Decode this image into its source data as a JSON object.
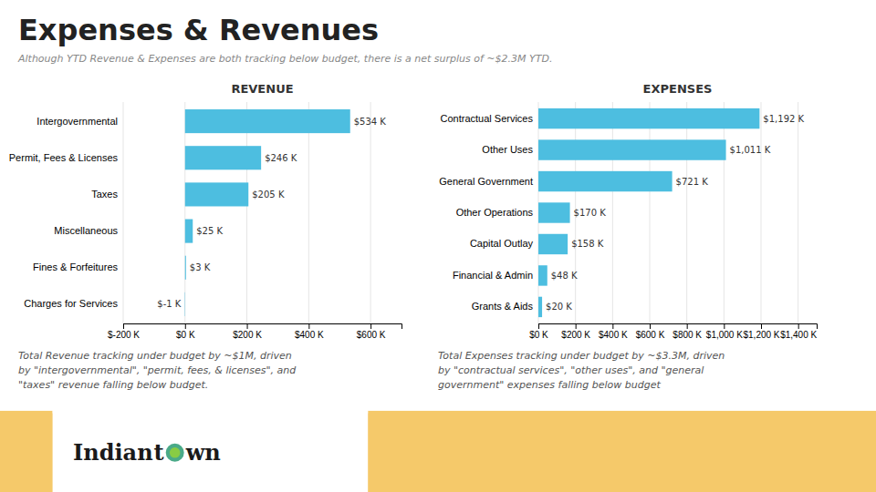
{
  "title": "Expenses & Revenues",
  "subtitle": "Although YTD Revenue & Expenses are both tracking below budget, there is a net surplus of ~$2.3M YTD.",
  "annotations": [
    "Indian",
    "t",
    "wn"
  ],
  "chart_data": [
    {
      "type": "bar",
      "orientation": "horizontal",
      "title": "REVENUE",
      "categories": [
        "Intergovernmental",
        "Permit, Fees & Licenses",
        "Taxes",
        "Miscellaneous",
        "Fines & Forfeitures",
        "Charges for Services"
      ],
      "values": [
        534,
        246,
        205,
        25,
        3,
        -1
      ],
      "value_labels": [
        "$534 K",
        "$246 K",
        "$205 K",
        "$25 K",
        "$3 K",
        "$-1 K"
      ],
      "data_labels": true,
      "color": "#4dbee0",
      "xlim": [
        -200,
        700
      ],
      "xticks": [
        {
          "value": -200,
          "label": "$-200 K"
        },
        {
          "value": 0,
          "label": "$0 K"
        },
        {
          "value": 200,
          "label": "$200 K"
        },
        {
          "value": 400,
          "label": "$400 K"
        },
        {
          "value": 600,
          "label": "$600 K"
        }
      ],
      "grid": true,
      "annotations": [
        "Total Revenue tracking under budget by ~$1M, driven\nby \"intergovernmental\", \"permit, fees, & licenses\", and\n\"taxes\" revenue falling below budget."
      ]
    },
    {
      "type": "bar",
      "orientation": "horizontal",
      "title": "EXPENSES",
      "categories": [
        "Contractual Services",
        "Other Uses",
        "General Government",
        "Other Operations",
        "Capital Outlay",
        "Financial & Admin",
        "Grants & Aids"
      ],
      "values": [
        1192,
        1011,
        721,
        170,
        158,
        48,
        20
      ],
      "value_labels": [
        "$1,192 K",
        "$1,011 K",
        "$721 K",
        "$170 K",
        "$158 K",
        "$48 K",
        "$20 K"
      ],
      "data_labels": true,
      "color": "#4dbee0",
      "xlim": [
        0,
        1500
      ],
      "xticks": [
        {
          "value": 0,
          "label": "$0 K"
        },
        {
          "value": 200,
          "label": "$200 K"
        },
        {
          "value": 400,
          "label": "$400 K"
        },
        {
          "value": 600,
          "label": "$600 K"
        },
        {
          "value": 800,
          "label": "$800 K"
        },
        {
          "value": 1000,
          "label": "$1,000 K"
        },
        {
          "value": 1200,
          "label": "$1,200 K"
        },
        {
          "value": 1400,
          "label": "$1,400 K"
        }
      ],
      "grid": true,
      "annotations": [
        "Total Expenses tracking under budget by ~$3.3M, driven\nby \"contractual services\", \"other uses\", and \"general\ngovernment\" expenses falling below budget"
      ]
    }
  ]
}
